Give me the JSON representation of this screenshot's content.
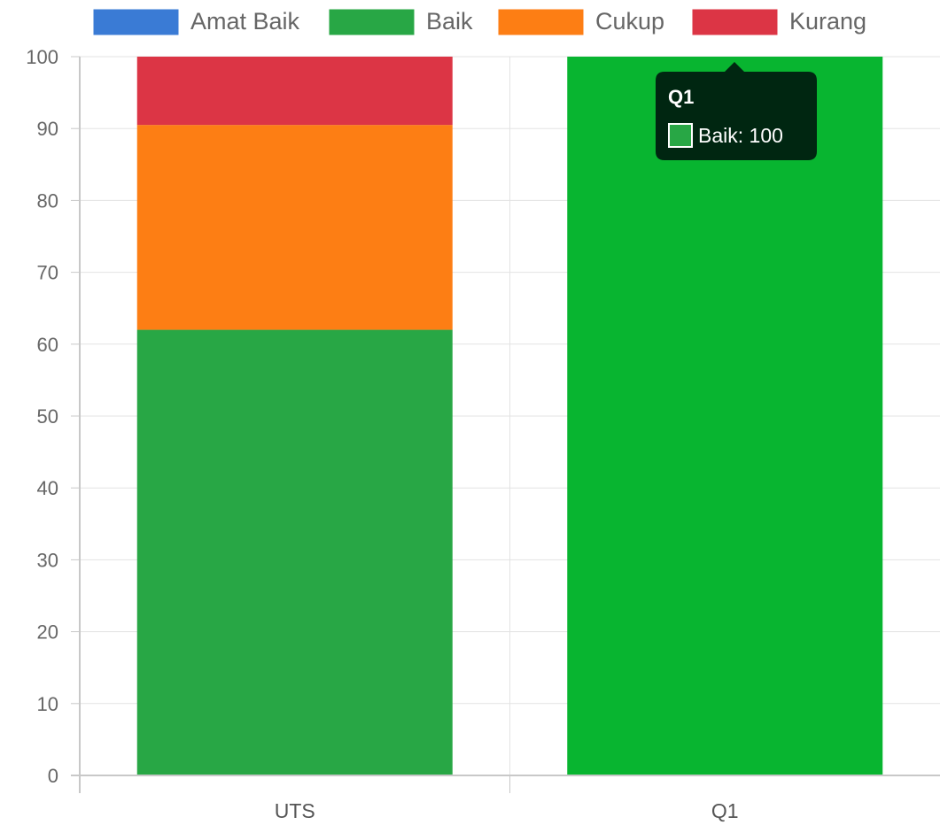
{
  "chart_data": {
    "type": "bar",
    "stacked": true,
    "categories": [
      "UTS",
      "Q1"
    ],
    "series": [
      {
        "name": "Amat Baik",
        "color": "#3a7bd5",
        "values": [
          0,
          0
        ]
      },
      {
        "name": "Baik",
        "color": "#28a745",
        "values": [
          62,
          100
        ]
      },
      {
        "name": "Cukup",
        "color": "#fd7e14",
        "values": [
          28.5,
          0
        ]
      },
      {
        "name": "Kurang",
        "color": "#dc3545",
        "values": [
          9.5,
          0
        ]
      }
    ],
    "ylim": [
      0,
      100
    ],
    "yticks": [
      "0",
      "10",
      "20",
      "30",
      "40",
      "50",
      "60",
      "70",
      "80",
      "90",
      "100"
    ],
    "grid": true,
    "legend_position": "top",
    "highlight": {
      "category_index": 1,
      "color": "#08b530"
    }
  },
  "tooltip": {
    "title": "Q1",
    "body": "Baik: 100",
    "swatch_color": "#28a745"
  }
}
